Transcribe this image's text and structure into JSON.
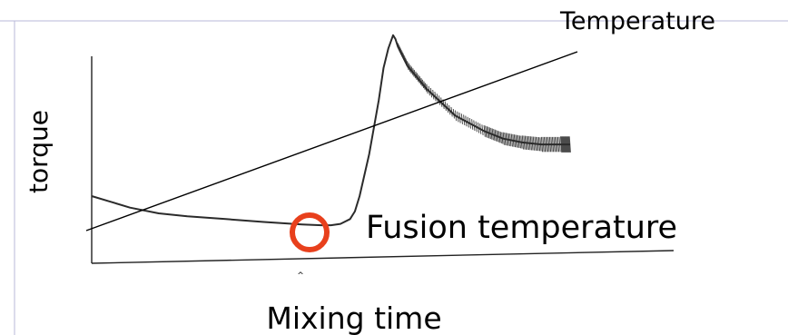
{
  "chart_data": {
    "type": "line",
    "ylabel": "torque",
    "xlabel": "Mixing time",
    "xlim": [
      0,
      100
    ],
    "ylim": [
      0,
      100
    ],
    "grid": false,
    "legend": "none",
    "series": [
      {
        "name": "",
        "x": [
          0,
          4,
          8,
          14,
          20,
          28,
          36,
          44,
          48,
          50,
          52,
          54,
          55,
          56,
          58,
          60,
          61,
          62,
          63,
          63.5,
          64,
          66,
          70,
          76,
          82,
          86,
          90,
          94,
          98,
          100
        ],
        "y": [
          18,
          15,
          12,
          9,
          7.5,
          6,
          4.5,
          3.2,
          2.8,
          2.8,
          3.5,
          6,
          10,
          18,
          40,
          68,
          85,
          95,
          102,
          100,
          96,
          86,
          74,
          60,
          52,
          48,
          46,
          45,
          45,
          45
        ]
      },
      {
        "name": "Temperature",
        "x": [
          0,
          100
        ],
        "y": [
          0,
          100
        ]
      }
    ],
    "annotations": [
      {
        "text": "Temperature",
        "x": 100,
        "y": 100
      },
      {
        "text": "Fusion temperature",
        "x": 55,
        "y": 3
      }
    ],
    "colors": {
      "torque_trace": "#2b2b2b",
      "temperature_line": "#000000",
      "axes": "#222222",
      "fusion_marker": "#e8401c",
      "frame": "#b8b8d8"
    }
  }
}
